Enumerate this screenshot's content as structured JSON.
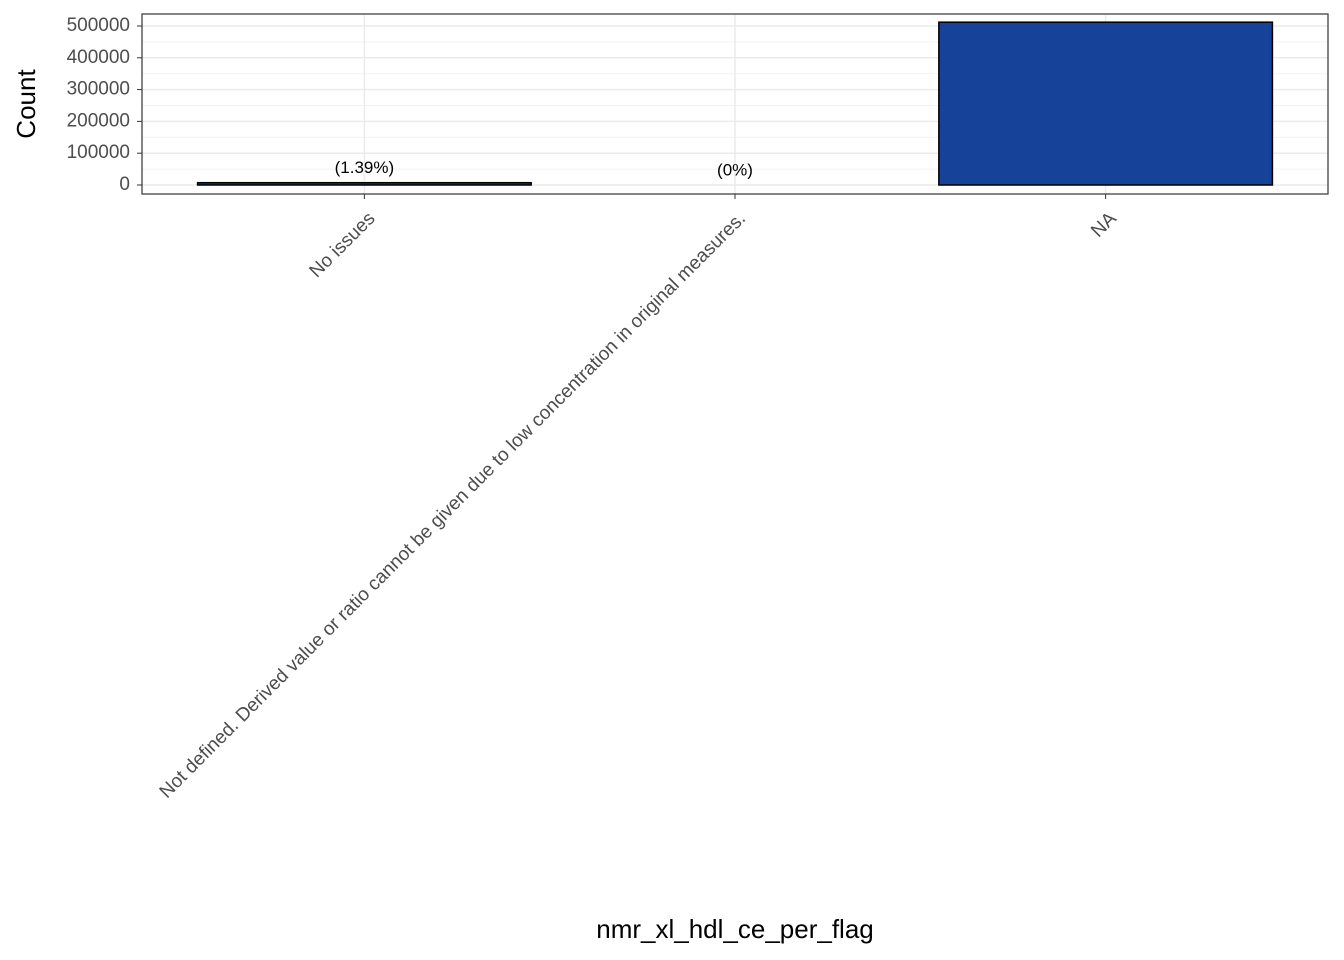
{
  "chart_data": {
    "type": "bar",
    "x_label": "nmr_xl_hdl_ce_per_flag",
    "y_label": "Count",
    "categories": [
      "No issues",
      "Not defined. Derived value or ratio cannot be given due to low concentration in original measures.",
      "NA"
    ],
    "values": [
      7200,
      0,
      512000
    ],
    "value_labels": [
      "(1.39%)",
      "(0%)",
      null
    ],
    "color": "#17429a",
    "ylim": [
      -28300,
      537700
    ],
    "yticks": [
      0,
      100000,
      200000,
      300000,
      400000,
      500000
    ],
    "grid": true
  }
}
